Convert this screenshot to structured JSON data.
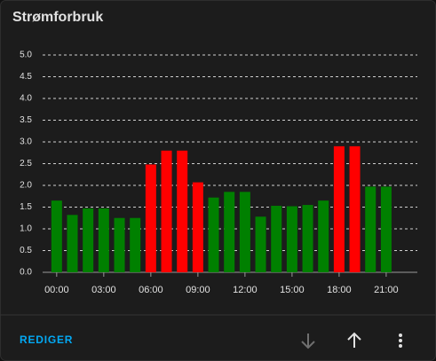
{
  "chart_data": {
    "type": "bar",
    "title": "Strømforbruk",
    "categories": [
      "00:00",
      null,
      null,
      "03:00",
      null,
      null,
      "06:00",
      null,
      null,
      "09:00",
      null,
      null,
      "12:00",
      null,
      null,
      "15:00",
      null,
      null,
      "18:00",
      null,
      null,
      "21:00",
      null,
      null
    ],
    "values": [
      1.65,
      1.32,
      1.47,
      1.47,
      1.25,
      1.25,
      2.48,
      2.8,
      2.8,
      2.07,
      1.72,
      1.85,
      1.85,
      1.28,
      1.53,
      1.52,
      1.55,
      1.65,
      2.9,
      2.9,
      1.97,
      1.97,
      null,
      null
    ],
    "colors": [
      "#008000",
      "#008000",
      "#008000",
      "#008000",
      "#008000",
      "#008000",
      "#ff0000",
      "#ff0000",
      "#ff0000",
      "#ff0000",
      "#008000",
      "#008000",
      "#008000",
      "#008000",
      "#008000",
      "#008000",
      "#008000",
      "#008000",
      "#ff0000",
      "#ff0000",
      "#008000",
      "#008000",
      "#008000",
      "#008000"
    ],
    "ylim": [
      0,
      5
    ],
    "yticks": [
      {
        "value": 0,
        "label": "0.0"
      },
      {
        "value": 0.5,
        "label": "0.5"
      },
      {
        "value": 1,
        "label": "1.0"
      },
      {
        "value": 1.5,
        "label": "1.5"
      },
      {
        "value": 2,
        "label": "2.0"
      },
      {
        "value": 2.5,
        "label": "2.5"
      },
      {
        "value": 3,
        "label": "3.0"
      },
      {
        "value": 3.5,
        "label": "3.5"
      },
      {
        "value": 4,
        "label": "4.0"
      },
      {
        "value": 4.5,
        "label": "4.5"
      },
      {
        "value": 5,
        "label": "5.0"
      }
    ],
    "grid": true
  },
  "card": {
    "action": "REDIGER"
  }
}
